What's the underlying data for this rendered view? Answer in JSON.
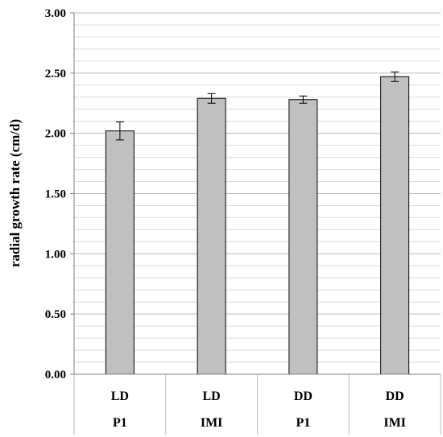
{
  "chart_data": {
    "type": "bar",
    "title": "",
    "ylabel": "radial growth rate (cm/d)",
    "xlabel": "",
    "ylim": [
      0,
      3
    ],
    "y_ticks": [
      "0.00",
      "0.50",
      "1.00",
      "1.50",
      "2.00",
      "2.50",
      "3.00"
    ],
    "minor_grid_step": 0.1,
    "grid": true,
    "categories": [
      {
        "top": "LD",
        "bottom": "P1"
      },
      {
        "top": "LD",
        "bottom": "IMI"
      },
      {
        "top": "DD",
        "bottom": "P1"
      },
      {
        "top": "DD",
        "bottom": "IMI"
      }
    ],
    "values": [
      2.02,
      2.29,
      2.28,
      2.47
    ],
    "errors": [
      0.075,
      0.04,
      0.03,
      0.04
    ],
    "bar_color": "#c0c0c0",
    "bar_edge_color": "#000000"
  }
}
